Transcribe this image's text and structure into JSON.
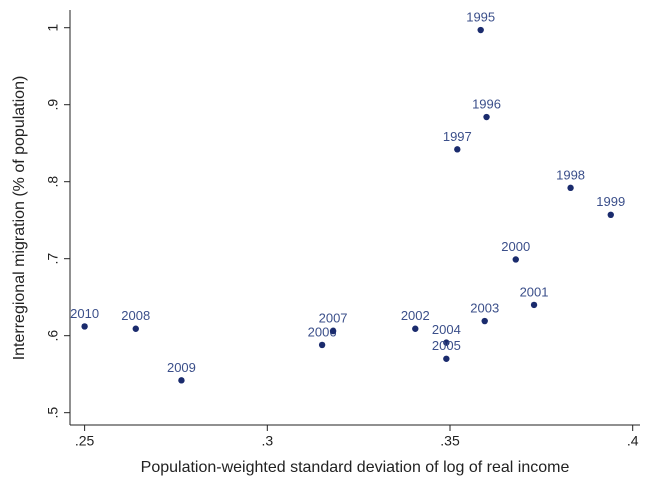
{
  "chart_data": {
    "type": "scatter",
    "x_label": "Population-weighted standard deviation of log of real income",
    "y_label": "Interregional migration (% of population)",
    "x": [
      0.3584,
      0.36,
      0.352,
      0.383,
      0.394,
      0.368,
      0.373,
      0.3405,
      0.3595,
      0.349,
      0.349,
      0.315,
      0.318,
      0.264,
      0.2765,
      0.25
    ],
    "values": [
      0.997,
      0.884,
      0.842,
      0.792,
      0.757,
      0.699,
      0.64,
      0.609,
      0.619,
      0.591,
      0.57,
      0.588,
      0.606,
      0.609,
      0.542,
      0.612
    ],
    "point_labels": [
      "1995",
      "1996",
      "1997",
      "1998",
      "1999",
      "2000",
      "2001",
      "2002",
      "2003",
      "2004",
      "2005",
      "2006",
      "2007",
      "2008",
      "2009",
      "2010"
    ],
    "color": "#1a2b6d",
    "label_color": "#3b4f8a",
    "xlim": [
      0.246,
      0.402
    ],
    "ylim": [
      0.484,
      1.023
    ],
    "xticks": [
      {
        "value": 0.25,
        "label": ".25"
      },
      {
        "value": 0.3,
        "label": ".3"
      },
      {
        "value": 0.35,
        "label": ".35"
      },
      {
        "value": 0.4,
        "label": ".4"
      }
    ],
    "yticks": [
      {
        "value": 0.5,
        "label": ".5"
      },
      {
        "value": 0.6,
        "label": ".6"
      },
      {
        "value": 0.7,
        "label": ".7"
      },
      {
        "value": 0.8,
        "label": ".8"
      },
      {
        "value": 0.9,
        "label": ".9"
      },
      1
    ]
  }
}
